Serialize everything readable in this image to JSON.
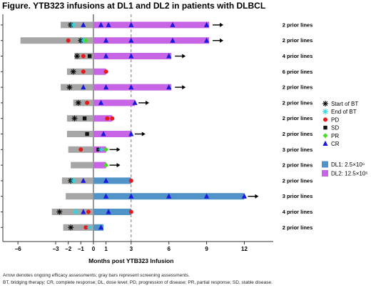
{
  "title": "Figure. YTB323 infusions at DL1 and DL2 in patients with DLBCL",
  "chart_data": {
    "type": "swimmer",
    "xlabel": "Months post YTB323 Infusion",
    "xlim": [
      -7.2,
      14.3
    ],
    "x_ticks": [
      -6,
      -3,
      -2,
      -1,
      0,
      1,
      3,
      6,
      9,
      12
    ],
    "reference_lines": [
      {
        "x": 0,
        "style": "solid"
      },
      {
        "x": 3,
        "style": "dashed"
      }
    ],
    "legend": {
      "markers": [
        {
          "symbol": "asterisk",
          "label": "Start of BT",
          "color": "#000000"
        },
        {
          "symbol": "asterisk",
          "label": "End of BT",
          "color": "#33d3e0"
        },
        {
          "symbol": "circle",
          "label": "PD",
          "color": "#e8191c"
        },
        {
          "symbol": "square",
          "label": "SD",
          "color": "#111111"
        },
        {
          "symbol": "diamond",
          "label": "PR",
          "color": "#4bd92e"
        },
        {
          "symbol": "triangle",
          "label": "CR",
          "color": "#1a1adb"
        }
      ],
      "doses": [
        {
          "label": "DL1: 2.5×10⁶",
          "color": "#4f93c9"
        },
        {
          "label": "DL2: 12.5×10⁶",
          "color": "#c765e6"
        }
      ]
    },
    "colors": {
      "screening": "#a6a6a6",
      "DL1": "#4f93c9",
      "DL2": "#c765e6"
    },
    "patients": [
      {
        "label": "2 prior lines",
        "dose": "DL2",
        "pre_start": -2.6,
        "end": 9.2,
        "ongoing": true,
        "events": [
          {
            "x": -1.8,
            "t": "startBT"
          },
          {
            "x": -1.6,
            "t": "endBT"
          },
          {
            "x": -0.8,
            "t": "CR"
          },
          {
            "x": 0.6,
            "t": "CR"
          },
          {
            "x": 1.2,
            "t": "CR"
          },
          {
            "x": 3.0,
            "t": "CR"
          },
          {
            "x": 6.3,
            "t": "CR"
          },
          {
            "x": 9.0,
            "t": "CR"
          }
        ]
      },
      {
        "label": "2 prior lines",
        "dose": "DL2",
        "pre_start": -5.8,
        "end": 9.2,
        "ongoing": true,
        "events": [
          {
            "x": -2.0,
            "t": "PD"
          },
          {
            "x": -1.0,
            "t": "startBT"
          },
          {
            "x": -0.8,
            "t": "endBT"
          },
          {
            "x": -0.6,
            "t": "PR"
          },
          {
            "x": 1.0,
            "t": "CR"
          },
          {
            "x": 3.0,
            "t": "CR"
          },
          {
            "x": 6.3,
            "t": "CR"
          },
          {
            "x": 9.0,
            "t": "CR"
          }
        ]
      },
      {
        "label": "4 prior lines",
        "dose": "DL2",
        "pre_start": -1.5,
        "end": 6.2,
        "ongoing": true,
        "events": [
          {
            "x": -1.3,
            "t": "startBT"
          },
          {
            "x": -0.8,
            "t": "PD"
          },
          {
            "x": -0.3,
            "t": "SD"
          },
          {
            "x": 1.0,
            "t": "CR"
          },
          {
            "x": 3.0,
            "t": "CR"
          },
          {
            "x": 6.0,
            "t": "CR"
          }
        ]
      },
      {
        "label": "6 prior lines",
        "dose": "DL2",
        "pre_start": -2.1,
        "end": 1.0,
        "ongoing": false,
        "events": [
          {
            "x": -1.6,
            "t": "startBT"
          },
          {
            "x": -0.8,
            "t": "PD"
          },
          {
            "x": 1.0,
            "t": "PD"
          }
        ]
      },
      {
        "label": "2 prior lines",
        "dose": "DL2",
        "pre_start": -2.6,
        "end": 6.2,
        "ongoing": true,
        "events": [
          {
            "x": -1.9,
            "t": "startBT"
          },
          {
            "x": -0.8,
            "t": "CR"
          },
          {
            "x": 1.0,
            "t": "CR"
          },
          {
            "x": 3.0,
            "t": "CR"
          },
          {
            "x": 6.0,
            "t": "CR"
          }
        ]
      },
      {
        "label": "2 prior lines",
        "dose": "DL2",
        "pre_start": -1.6,
        "end": 3.3,
        "ongoing": true,
        "events": [
          {
            "x": -1.2,
            "t": "startBT"
          },
          {
            "x": -0.5,
            "t": "PD"
          },
          {
            "x": 0.6,
            "t": "CR"
          },
          {
            "x": 3.3,
            "t": "CR"
          }
        ]
      },
      {
        "label": "2 prior lines",
        "dose": "DL2",
        "pre_start": -2.1,
        "end": 1.5,
        "ongoing": false,
        "events": [
          {
            "x": -1.5,
            "t": "startBT"
          },
          {
            "x": -0.7,
            "t": "SD"
          },
          {
            "x": 1.1,
            "t": "PD"
          },
          {
            "x": 1.5,
            "t": "PD"
          }
        ]
      },
      {
        "label": "2 prior lines",
        "dose": "DL2",
        "pre_start": -2.1,
        "end": 3.0,
        "ongoing": true,
        "events": [
          {
            "x": -0.5,
            "t": "SD"
          },
          {
            "x": 0.8,
            "t": "CR"
          },
          {
            "x": 3.0,
            "t": "CR"
          }
        ]
      },
      {
        "label": "3 prior lines",
        "dose": "DL2",
        "pre_start": -2.0,
        "end": 1.0,
        "ongoing": true,
        "events": [
          {
            "x": -1.0,
            "t": "PD"
          },
          {
            "x": 0.4,
            "t": "SD"
          },
          {
            "x": 0.6,
            "t": "endBT"
          },
          {
            "x": 1.0,
            "t": "PR"
          }
        ]
      },
      {
        "label": "2 prior lines",
        "dose": "DL2",
        "pre_start": -1.8,
        "end": 1.0,
        "ongoing": true,
        "events": [
          {
            "x": 1.0,
            "t": "PR"
          }
        ]
      },
      {
        "label": "2 prior lines",
        "dose": "DL1",
        "pre_start": -2.5,
        "end": 3.0,
        "ongoing": false,
        "events": [
          {
            "x": -1.8,
            "t": "startBT"
          },
          {
            "x": -1.6,
            "t": "endBT"
          },
          {
            "x": -0.8,
            "t": "CR"
          },
          {
            "x": 1.0,
            "t": "CR"
          },
          {
            "x": 3.0,
            "t": "PD"
          }
        ]
      },
      {
        "label": "3 prior lines",
        "dose": "DL1",
        "pre_start": -2.2,
        "end": 12.0,
        "ongoing": true,
        "events": [
          {
            "x": 1.0,
            "t": "CR"
          },
          {
            "x": 3.0,
            "t": "CR"
          },
          {
            "x": 6.0,
            "t": "CR"
          },
          {
            "x": 9.0,
            "t": "CR"
          },
          {
            "x": 12.0,
            "t": "CR"
          }
        ]
      },
      {
        "label": "4 prior lines",
        "dose": "DL1",
        "pre_start": -3.3,
        "end": 3.0,
        "ongoing": false,
        "events": [
          {
            "x": -2.7,
            "t": "startBT"
          },
          {
            "x": -1.4,
            "t": "endBT"
          },
          {
            "x": -0.8,
            "t": "CR"
          },
          {
            "x": -0.4,
            "t": "PD"
          },
          {
            "x": 1.2,
            "t": "CR"
          },
          {
            "x": 3.0,
            "t": "PD"
          }
        ]
      },
      {
        "label": "2 prior lines",
        "dose": "DL1",
        "pre_start": -2.4,
        "end": 0.8,
        "ongoing": false,
        "events": [
          {
            "x": -1.8,
            "t": "startBT"
          },
          {
            "x": -0.6,
            "t": "PD"
          },
          {
            "x": -0.3,
            "t": "endBT"
          },
          {
            "x": 0.6,
            "t": "CR"
          }
        ]
      }
    ]
  },
  "footnote": {
    "line1": "Arrow denotes ongoing efficacy assessments; gray bars represent screening assessments.",
    "line2": "BT, bridging therapy; CR, complete response; DL, dose level; PD, progression of disease; PR, partial response; SD, stable disease."
  }
}
